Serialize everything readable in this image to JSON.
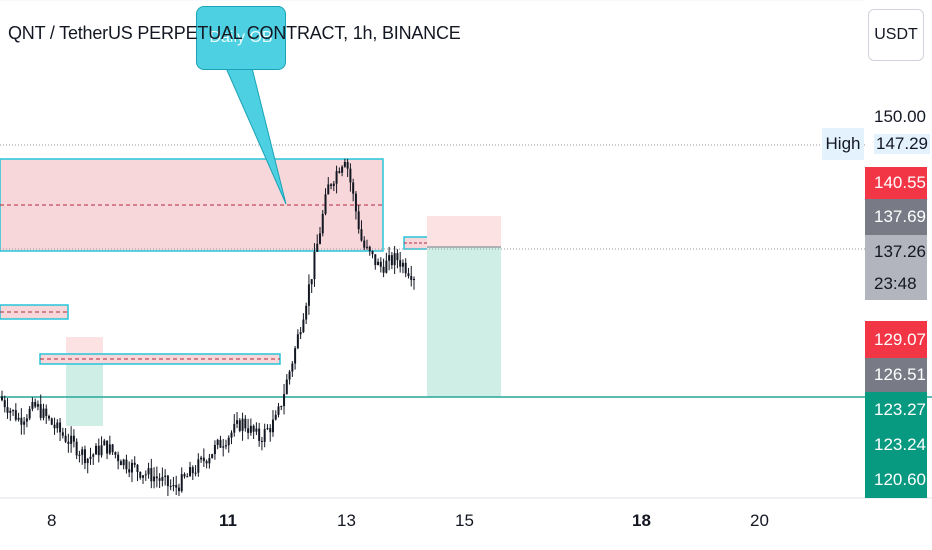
{
  "header": {
    "title": "QNT / TetherUS PERPETUAL CONTRACT, 1h, BINANCE",
    "currency": "USDT"
  },
  "annotation": {
    "callout_text": "Daily OB"
  },
  "price_axis": {
    "top_tick": "150.00",
    "high_label": "High",
    "high_value": "147.29",
    "tags": [
      {
        "value": "140.55",
        "color": "#f23645"
      },
      {
        "value": "137.69",
        "color": "#787b86"
      },
      {
        "value": "137.26",
        "color": "#b2b5be",
        "text_color": "#131722"
      },
      {
        "value": "23:48",
        "color": "#b2b5be",
        "text_color": "#131722"
      },
      {
        "value": "129.07",
        "color": "#f23645"
      },
      {
        "value": "126.51",
        "color": "#787b86"
      },
      {
        "value": "123.27",
        "color": "#089981"
      },
      {
        "value": "123.24",
        "color": "#089981"
      },
      {
        "value": "120.60",
        "color": "#089981"
      }
    ]
  },
  "time_axis": {
    "labels": [
      "8",
      "11",
      "13",
      "15",
      "18",
      "20"
    ]
  },
  "colors": {
    "zone_fill": "#f8d7da",
    "zone_border": "#26c6da",
    "candle": "#131722",
    "target_fill": "#cfeee6",
    "stop_fill": "#fde2e4",
    "support_line": "#26a69a"
  },
  "chart_data": {
    "type": "candlestick",
    "symbol": "QNT / TetherUS PERPETUAL CONTRACT",
    "interval": "1h",
    "exchange": "BINANCE",
    "x_ticks": [
      "8",
      "11",
      "13",
      "15",
      "18",
      "20"
    ],
    "y_range": [
      119,
      151
    ],
    "high": 147.29,
    "marked_levels": [
      140.55,
      137.69,
      137.26,
      129.07,
      126.51,
      123.27,
      123.24,
      120.6
    ],
    "daily_ob_zone": [
      137.3,
      146.6
    ],
    "position": {
      "entry": 137.4,
      "stop": 139.0,
      "target": 123.4
    },
    "close_trend": [
      127.5,
      126.0,
      127.0,
      125.5,
      124.2,
      123.0,
      124.0,
      122.8,
      122.0,
      121.5,
      120.6,
      121.8,
      123.2,
      124.5,
      125.8,
      124.5,
      126.0,
      131.0,
      137.0,
      144.0,
      146.5,
      139.5,
      137.8,
      138.5,
      137.2
    ]
  }
}
